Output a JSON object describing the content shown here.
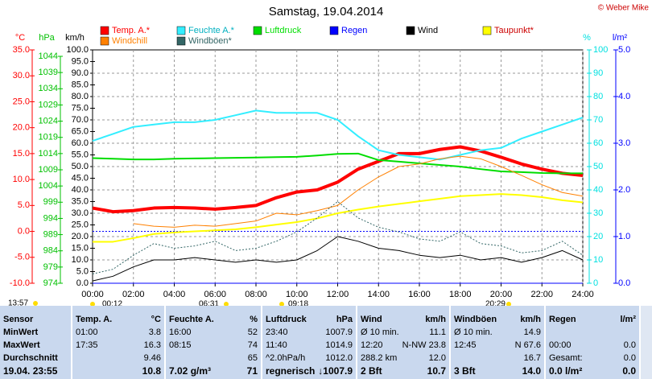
{
  "chart_data": {
    "type": "line",
    "title": "Samstag, 19.04.2014",
    "copyright": "© Weber Mike",
    "xlim": [
      0,
      24
    ],
    "xticks": [
      {
        "value": 0,
        "label": "00:00"
      },
      {
        "value": 2,
        "label": "02:00"
      },
      {
        "value": 4,
        "label": "04:00"
      },
      {
        "value": 6,
        "label": "06:00"
      },
      {
        "value": 8,
        "label": "08:00"
      },
      {
        "value": 10,
        "label": "10:00"
      },
      {
        "value": 12,
        "label": "12:00"
      },
      {
        "value": 14,
        "label": "14:00"
      },
      {
        "value": 16,
        "label": "16:00"
      },
      {
        "value": 18,
        "label": "18:00"
      },
      {
        "value": 20,
        "label": "20:00"
      },
      {
        "value": 22,
        "label": "22:00"
      },
      {
        "value": 24,
        "label": "24:00"
      }
    ],
    "x": [
      0,
      1,
      2,
      3,
      4,
      5,
      6,
      7,
      8,
      9,
      10,
      11,
      12,
      13,
      14,
      15,
      16,
      17,
      18,
      19,
      20,
      21,
      22,
      23,
      24
    ],
    "grid": true,
    "axes": [
      {
        "label": "°C",
        "color": "#ff0000",
        "lim": [
          -10,
          35
        ],
        "ticks": [
          {
            "value": 35,
            "label": "35.0"
          },
          {
            "value": 30,
            "label": "30.0"
          },
          {
            "value": 25,
            "label": "25.0"
          },
          {
            "value": 20,
            "label": "20.0"
          },
          {
            "value": 15,
            "label": "15.0"
          },
          {
            "value": 10,
            "label": "10.0"
          },
          {
            "value": 5,
            "label": "5.0"
          },
          {
            "value": 0,
            "label": "0.0"
          },
          {
            "value": -5,
            "label": "-5.0"
          },
          {
            "value": -10,
            "label": "-10.0"
          }
        ]
      },
      {
        "label": "hPa",
        "color": "#00c000",
        "lim": [
          974,
          1044
        ],
        "ticks": [
          1044,
          1039,
          1034,
          1029,
          1024,
          1019,
          1014,
          1009,
          1004,
          999,
          994,
          989,
          984,
          979,
          974
        ]
      },
      {
        "label": "km/h",
        "color": "#000000",
        "lim": [
          0,
          100
        ],
        "ticks": [
          {
            "value": 100,
            "label": "100.0"
          },
          {
            "value": 95,
            "label": "95.0"
          },
          {
            "value": 90,
            "label": "90.0"
          },
          {
            "value": 85,
            "label": "85.0"
          },
          {
            "value": 80,
            "label": "80.0"
          },
          {
            "value": 75,
            "label": "75.0"
          },
          {
            "value": 70,
            "label": "70.0"
          },
          {
            "value": 65,
            "label": "65.0"
          },
          {
            "value": 60,
            "label": "60.0"
          },
          {
            "value": 55,
            "label": "55.0"
          },
          {
            "value": 50,
            "label": "50.0"
          },
          {
            "value": 45,
            "label": "45.0"
          },
          {
            "value": 40,
            "label": "40.0"
          },
          {
            "value": 35,
            "label": "35.0"
          },
          {
            "value": 30,
            "label": "30.0"
          },
          {
            "value": 25,
            "label": "25.0"
          },
          {
            "value": 20,
            "label": "20.0"
          },
          {
            "value": 15,
            "label": "15.0"
          },
          {
            "value": 10,
            "label": "10.0"
          },
          {
            "value": 5,
            "label": "5.0"
          },
          {
            "value": 0,
            "label": "0.0"
          }
        ]
      },
      {
        "label": "%",
        "color": "#00e0e0",
        "lim": [
          0,
          100
        ],
        "ticks": [
          100,
          90,
          80,
          70,
          60,
          50,
          40,
          30,
          20,
          10,
          0
        ]
      },
      {
        "label": "l/m²",
        "color": "#0000ff",
        "lim": [
          0,
          5
        ],
        "ticks": [
          {
            "value": 5,
            "label": "5.0"
          },
          {
            "value": 4,
            "label": "4.0"
          },
          {
            "value": 3,
            "label": "3.0"
          },
          {
            "value": 2,
            "label": "2.0"
          },
          {
            "value": 1,
            "label": "1.0"
          },
          {
            "value": 0,
            "label": "0.0"
          }
        ]
      }
    ],
    "series": [
      {
        "name": "Temp. A.*",
        "color": "#ff0000",
        "axis": 0,
        "values": [
          4.5,
          3.8,
          4.0,
          4.5,
          4.6,
          4.5,
          4.3,
          4.6,
          5.0,
          6.5,
          7.6,
          8.0,
          9.5,
          12.0,
          13.5,
          15.0,
          15.0,
          15.8,
          16.3,
          15.5,
          14.3,
          13.0,
          12.0,
          11.2,
          10.8
        ]
      },
      {
        "name": "Feuchte A.*",
        "color": "#33eeff",
        "axis": 3,
        "values": [
          61,
          64,
          67,
          68,
          69,
          69,
          70,
          72,
          74,
          73,
          73,
          73,
          70,
          63,
          57,
          55,
          54,
          53,
          55,
          57,
          58,
          62,
          65,
          68,
          71
        ]
      },
      {
        "name": "Luftdruck",
        "color": "#00dd00",
        "axis": 1,
        "values": [
          1012.6,
          1012.4,
          1012.2,
          1012.2,
          1012.4,
          1012.5,
          1012.6,
          1012.7,
          1012.8,
          1012.9,
          1013.0,
          1013.4,
          1013.9,
          1014.0,
          1012.0,
          1011.5,
          1011.0,
          1010.5,
          1010.0,
          1009.2,
          1008.5,
          1008.3,
          1008.0,
          1007.9,
          1007.9
        ]
      },
      {
        "name": "Regen",
        "color": "#0000ff",
        "axis": 4,
        "values": [
          0,
          0,
          0,
          0,
          0,
          0,
          0,
          0,
          0,
          0,
          0,
          0,
          0,
          0,
          0,
          0,
          0,
          0,
          0,
          0,
          0,
          0,
          0,
          0,
          0
        ]
      },
      {
        "name": "Wind",
        "color": "#000000",
        "axis": 2,
        "values": [
          1,
          3,
          7,
          10,
          10,
          11,
          10,
          9,
          10,
          9,
          10,
          14,
          20,
          18,
          15,
          14,
          12,
          11,
          12,
          10,
          11,
          9,
          11,
          14,
          10
        ]
      },
      {
        "name": "Taupunkt*",
        "color": "#ffff00",
        "axis": 0,
        "values": [
          -2.0,
          -2.0,
          -1.3,
          -0.5,
          -0.2,
          0,
          0.2,
          0.4,
          0.8,
          1.3,
          1.8,
          2.5,
          3.5,
          4.2,
          4.8,
          5.3,
          5.8,
          6.3,
          6.8,
          7.0,
          7.2,
          7.0,
          6.6,
          6.0,
          5.6
        ]
      },
      {
        "name": "Windchill",
        "color": "#ff8000",
        "axis": 0,
        "values": [
          null,
          null,
          1.5,
          1.0,
          0.8,
          1.2,
          1.0,
          1.5,
          2.0,
          3.5,
          3.2,
          4.0,
          5.0,
          8.0,
          10.5,
          12.5,
          13.0,
          14.0,
          14.5,
          14.0,
          12.5,
          10.8,
          9.0,
          7.5,
          6.8
        ]
      },
      {
        "name": "Windböen*",
        "color": "#336666",
        "axis": 2,
        "values": [
          4,
          6,
          12,
          17,
          15,
          16,
          18,
          14,
          15,
          18,
          22,
          28,
          35,
          28,
          24,
          22,
          19,
          18,
          22,
          17,
          16,
          13,
          14,
          18,
          12
        ]
      }
    ],
    "time_markers": [
      "13:57",
      "00:12",
      "06:31",
      "09:18",
      "20:29"
    ]
  },
  "table": {
    "header": [
      {
        "a": "Sensor"
      },
      {
        "a": "Temp. A.",
        "b": "°C"
      },
      {
        "a": "Feuchte A.",
        "b": "%"
      },
      {
        "a": "Luftdruck",
        "b": "hPa"
      },
      {
        "a": "Wind",
        "b": "km/h"
      },
      {
        "a": "Windböen",
        "b": "km/h"
      },
      {
        "a": "Regen",
        "b": "l/m²"
      }
    ],
    "rows": [
      [
        {
          "a": "MinWert"
        },
        {
          "a": "01:00",
          "b": "3.8"
        },
        {
          "a": "16:00",
          "b": "52"
        },
        {
          "a": "23:40",
          "b": "1007.9"
        },
        {
          "a": "Ø 10 min.",
          "b": "11.1"
        },
        {
          "a": "Ø 10 min.",
          "b": "14.9"
        },
        {}
      ],
      [
        {
          "a": "MaxWert"
        },
        {
          "a": "17:35",
          "b": "16.3"
        },
        {
          "a": "08:15",
          "b": "74"
        },
        {
          "a": "11:40",
          "b": "1014.9"
        },
        {
          "a": "12:20",
          "b": "N-NW 23.8"
        },
        {
          "a": "12:45",
          "b": "N 67.6"
        },
        {
          "a": "00:00",
          "b": "0.0"
        }
      ],
      [
        {
          "a": "Durchschnitt"
        },
        {
          "b": "9.46"
        },
        {
          "b": "65"
        },
        {
          "a": "^2.0hPa/h",
          "b": "1012.0"
        },
        {
          "a": "288.2 km",
          "b": "12.0"
        },
        {
          "b": "16.7"
        },
        {
          "a": "Gesamt:",
          "b": "0.0"
        }
      ],
      [
        {
          "a": "19.04. 23:55"
        },
        {
          "b": "10.8"
        },
        {
          "a": "7.02 g/m³",
          "b": "71"
        },
        {
          "a": "regnerisch",
          "b": "↓1007.9"
        },
        {
          "a": "2 Bft",
          "b": "10.7"
        },
        {
          "a": "3 Bft",
          "b": "14.0"
        },
        {
          "a": "0.0 l/m²",
          "b": "0.0"
        }
      ]
    ]
  }
}
